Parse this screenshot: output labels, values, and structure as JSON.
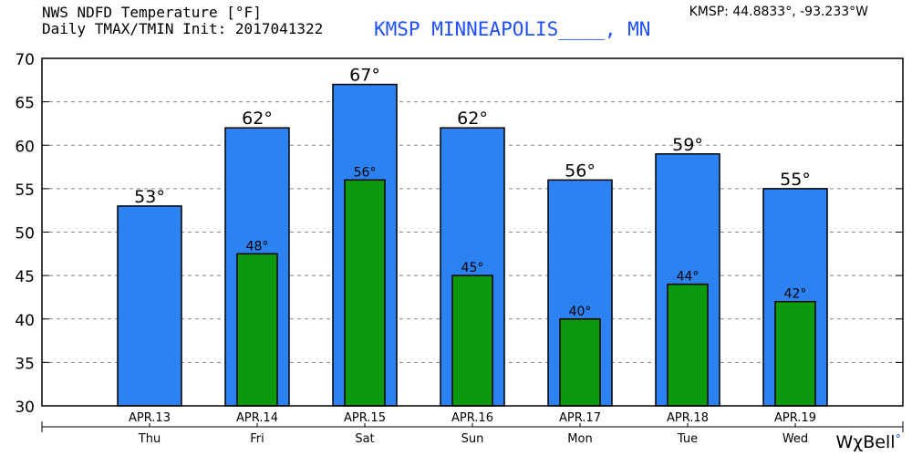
{
  "header": {
    "title_line1": "NWS NDFD Temperature [°F]",
    "title_line2": "Daily TMAX/TMIN Init: 2017041322",
    "station": "KMSP MINNEAPOLIS____, MN",
    "coords": "KMSP: 44.8833°, -93.233°W"
  },
  "brand": {
    "name": "WχBell",
    "dot": "°"
  },
  "colors": {
    "tmax": "#2b82f0",
    "tmin": "#0d990d",
    "grid": "#888888",
    "axis": "#000000"
  },
  "chart_data": {
    "type": "bar",
    "title": "NWS NDFD Temperature [°F] Daily TMAX/TMIN",
    "ylim": [
      30,
      70
    ],
    "yticks": [
      30,
      35,
      40,
      45,
      50,
      55,
      60,
      65,
      70
    ],
    "grid": true,
    "categories": [
      "APR.13",
      "APR.14",
      "APR.15",
      "APR.16",
      "APR.17",
      "APR.18",
      "APR.19"
    ],
    "weekdays": [
      "Thu",
      "Fri",
      "Sat",
      "Sun",
      "Mon",
      "Tue",
      "Wed"
    ],
    "series": [
      {
        "name": "TMAX",
        "values": [
          53,
          62,
          67,
          62,
          56,
          59,
          55
        ],
        "labels": [
          "53°",
          "62°",
          "67°",
          "62°",
          "56°",
          "59°",
          "55°"
        ]
      },
      {
        "name": "TMIN",
        "values": [
          null,
          47.5,
          56,
          45,
          40,
          44,
          42
        ],
        "labels": [
          "",
          "48°",
          "56°",
          "45°",
          "40°",
          "44°",
          "42°"
        ]
      }
    ]
  }
}
